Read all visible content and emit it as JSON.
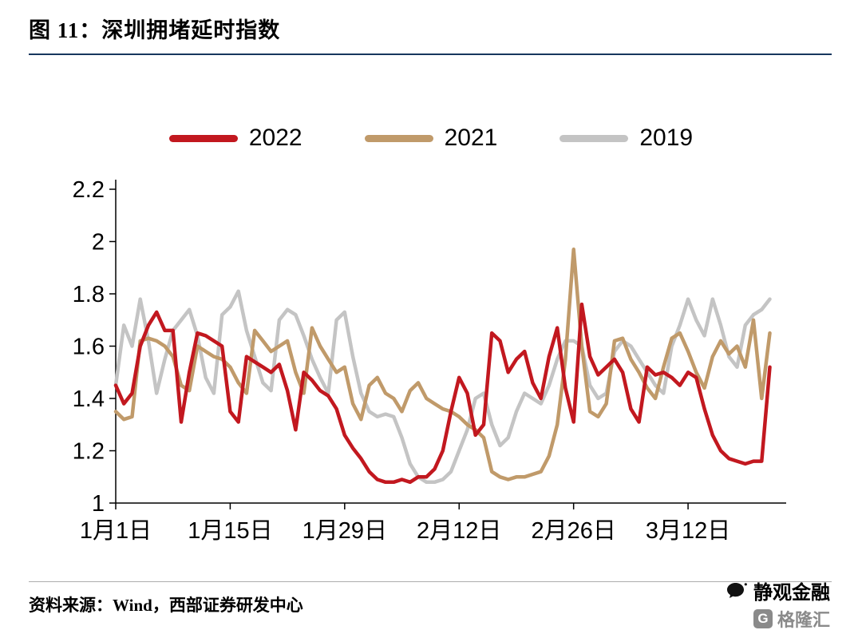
{
  "header": {
    "title": "图 11：深圳拥堵延时指数"
  },
  "chart_data": {
    "type": "line",
    "title": "深圳拥堵延时指数",
    "xlabel": "",
    "ylabel": "",
    "ylim": [
      1,
      2.2
    ],
    "y_ticks": [
      1,
      1.2,
      1.4,
      1.6,
      1.8,
      2,
      2.2
    ],
    "grid": false,
    "legend_position": "top",
    "x_tick_labels": [
      "1月1日",
      "1月15日",
      "1月29日",
      "2月12日",
      "2月26日",
      "3月12日"
    ],
    "x_tick_indices": [
      0,
      14,
      28,
      42,
      56,
      70
    ],
    "x_unit": "day-of-year, 1月1日 至 3月22日, daily",
    "series": [
      {
        "name": "2022",
        "color": "#c2181f",
        "values": [
          1.45,
          1.38,
          1.42,
          1.6,
          1.68,
          1.73,
          1.66,
          1.66,
          1.31,
          1.5,
          1.65,
          1.64,
          1.62,
          1.6,
          1.35,
          1.31,
          1.56,
          1.54,
          1.52,
          1.5,
          1.53,
          1.43,
          1.28,
          1.5,
          1.47,
          1.43,
          1.41,
          1.36,
          1.26,
          1.21,
          1.17,
          1.12,
          1.09,
          1.08,
          1.08,
          1.09,
          1.08,
          1.1,
          1.1,
          1.13,
          1.2,
          1.35,
          1.48,
          1.42,
          1.26,
          1.3,
          1.65,
          1.62,
          1.5,
          1.55,
          1.58,
          1.46,
          1.4,
          1.56,
          1.67,
          1.44,
          1.31,
          1.76,
          1.56,
          1.49,
          1.52,
          1.55,
          1.5,
          1.36,
          1.31,
          1.52,
          1.49,
          1.5,
          1.48,
          1.45,
          1.5,
          1.48,
          1.36,
          1.26,
          1.2,
          1.17,
          1.16,
          1.15,
          1.16,
          1.16,
          1.52
        ]
      },
      {
        "name": "2021",
        "color": "#c09a6a",
        "values": [
          1.35,
          1.32,
          1.33,
          1.62,
          1.63,
          1.62,
          1.6,
          1.56,
          1.45,
          1.43,
          1.6,
          1.58,
          1.56,
          1.55,
          1.52,
          1.46,
          1.42,
          1.66,
          1.62,
          1.58,
          1.6,
          1.62,
          1.5,
          1.42,
          1.67,
          1.6,
          1.55,
          1.5,
          1.52,
          1.38,
          1.32,
          1.45,
          1.48,
          1.42,
          1.4,
          1.35,
          1.43,
          1.46,
          1.4,
          1.38,
          1.36,
          1.35,
          1.33,
          1.3,
          1.28,
          1.25,
          1.12,
          1.1,
          1.09,
          1.1,
          1.1,
          1.11,
          1.12,
          1.18,
          1.3,
          1.55,
          1.97,
          1.6,
          1.35,
          1.33,
          1.38,
          1.62,
          1.63,
          1.55,
          1.5,
          1.44,
          1.4,
          1.52,
          1.63,
          1.65,
          1.58,
          1.5,
          1.44,
          1.56,
          1.62,
          1.57,
          1.6,
          1.52,
          1.7,
          1.4,
          1.65
        ]
      },
      {
        "name": "2019",
        "color": "#c4c4c4",
        "values": [
          1.45,
          1.68,
          1.6,
          1.78,
          1.62,
          1.42,
          1.55,
          1.66,
          1.7,
          1.74,
          1.64,
          1.48,
          1.42,
          1.72,
          1.75,
          1.81,
          1.66,
          1.56,
          1.46,
          1.43,
          1.7,
          1.74,
          1.72,
          1.64,
          1.55,
          1.48,
          1.42,
          1.7,
          1.73,
          1.56,
          1.42,
          1.35,
          1.33,
          1.34,
          1.33,
          1.25,
          1.15,
          1.1,
          1.08,
          1.08,
          1.09,
          1.12,
          1.2,
          1.28,
          1.4,
          1.42,
          1.3,
          1.22,
          1.25,
          1.35,
          1.42,
          1.4,
          1.38,
          1.45,
          1.55,
          1.62,
          1.62,
          1.6,
          1.45,
          1.4,
          1.42,
          1.58,
          1.62,
          1.6,
          1.55,
          1.5,
          1.45,
          1.42,
          1.6,
          1.68,
          1.78,
          1.7,
          1.64,
          1.78,
          1.68,
          1.56,
          1.52,
          1.68,
          1.72,
          1.74,
          1.78
        ]
      }
    ]
  },
  "footer": {
    "source": "资料来源：Wind，西部证券研发中心",
    "watermark": "静观金融",
    "logo_letter": "G",
    "logo_text": "格隆汇"
  }
}
